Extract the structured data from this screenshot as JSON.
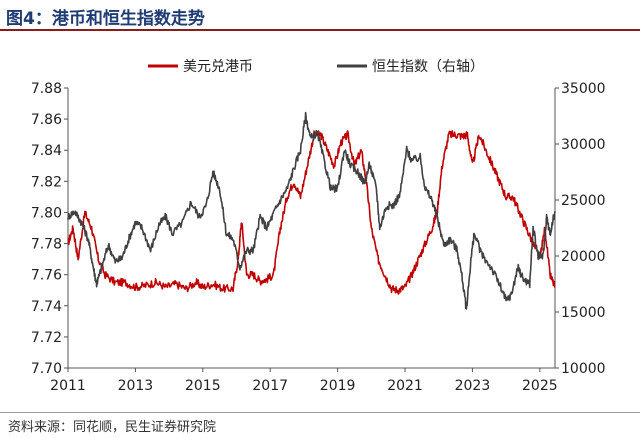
{
  "title": "图4：港币和恒生指数走势",
  "source": "资料来源：同花顺，民生证券研究院",
  "chart_data": {
    "type": "line",
    "legend_position": "top-center",
    "grid": false,
    "x_ticks": [
      "2011",
      "2013",
      "2015",
      "2017",
      "2019",
      "2021",
      "2023",
      "2025"
    ],
    "x_range": [
      2011.0,
      2025.45
    ],
    "y_left": {
      "range": [
        7.7,
        7.88
      ],
      "ticks": [
        "7.70",
        "7.72",
        "7.74",
        "7.76",
        "7.78",
        "7.80",
        "7.82",
        "7.84",
        "7.86",
        "7.88"
      ]
    },
    "y_right": {
      "range": [
        10000,
        35000
      ],
      "ticks": [
        "10000",
        "15000",
        "20000",
        "25000",
        "30000",
        "35000"
      ]
    },
    "series": [
      {
        "name": "美元兑港币",
        "axis": "left",
        "color": "#c00000",
        "points": [
          [
            2011.0,
            7.78
          ],
          [
            2011.15,
            7.79
          ],
          [
            2011.3,
            7.77
          ],
          [
            2011.5,
            7.8
          ],
          [
            2011.7,
            7.79
          ],
          [
            2011.9,
            7.77
          ],
          [
            2012.1,
            7.76
          ],
          [
            2012.4,
            7.755
          ],
          [
            2012.7,
            7.755
          ],
          [
            2013.0,
            7.752
          ],
          [
            2013.3,
            7.753
          ],
          [
            2013.6,
            7.755
          ],
          [
            2013.9,
            7.752
          ],
          [
            2014.2,
            7.754
          ],
          [
            2014.5,
            7.751
          ],
          [
            2014.8,
            7.755
          ],
          [
            2015.0,
            7.752
          ],
          [
            2015.3,
            7.754
          ],
          [
            2015.6,
            7.751
          ],
          [
            2015.9,
            7.751
          ],
          [
            2016.05,
            7.77
          ],
          [
            2016.15,
            7.795
          ],
          [
            2016.3,
            7.76
          ],
          [
            2016.5,
            7.76
          ],
          [
            2016.7,
            7.756
          ],
          [
            2016.9,
            7.757
          ],
          [
            2017.1,
            7.76
          ],
          [
            2017.3,
            7.79
          ],
          [
            2017.5,
            7.81
          ],
          [
            2017.7,
            7.82
          ],
          [
            2017.9,
            7.81
          ],
          [
            2018.1,
            7.83
          ],
          [
            2018.3,
            7.85
          ],
          [
            2018.5,
            7.85
          ],
          [
            2018.7,
            7.84
          ],
          [
            2018.9,
            7.83
          ],
          [
            2019.1,
            7.845
          ],
          [
            2019.3,
            7.85
          ],
          [
            2019.5,
            7.83
          ],
          [
            2019.7,
            7.84
          ],
          [
            2019.85,
            7.82
          ],
          [
            2020.0,
            7.79
          ],
          [
            2020.2,
            7.77
          ],
          [
            2020.4,
            7.76
          ],
          [
            2020.6,
            7.751
          ],
          [
            2020.8,
            7.75
          ],
          [
            2021.0,
            7.752
          ],
          [
            2021.2,
            7.76
          ],
          [
            2021.4,
            7.77
          ],
          [
            2021.6,
            7.78
          ],
          [
            2021.8,
            7.79
          ],
          [
            2021.95,
            7.8
          ],
          [
            2022.1,
            7.83
          ],
          [
            2022.3,
            7.85
          ],
          [
            2022.5,
            7.85
          ],
          [
            2022.7,
            7.849
          ],
          [
            2022.85,
            7.85
          ],
          [
            2023.0,
            7.83
          ],
          [
            2023.2,
            7.85
          ],
          [
            2023.4,
            7.84
          ],
          [
            2023.6,
            7.83
          ],
          [
            2023.8,
            7.82
          ],
          [
            2024.0,
            7.81
          ],
          [
            2024.2,
            7.81
          ],
          [
            2024.4,
            7.8
          ],
          [
            2024.6,
            7.79
          ],
          [
            2024.8,
            7.78
          ],
          [
            2025.0,
            7.77
          ],
          [
            2025.15,
            7.79
          ],
          [
            2025.3,
            7.76
          ],
          [
            2025.45,
            7.752
          ]
        ]
      },
      {
        "name": "恒生指数（右轴）",
        "axis": "right",
        "color": "#404040",
        "points": [
          [
            2011.0,
            23500
          ],
          [
            2011.2,
            24000
          ],
          [
            2011.4,
            23000
          ],
          [
            2011.6,
            21500
          ],
          [
            2011.75,
            19000
          ],
          [
            2011.85,
            17500
          ],
          [
            2012.0,
            19000
          ],
          [
            2012.2,
            21000
          ],
          [
            2012.4,
            19500
          ],
          [
            2012.6,
            19800
          ],
          [
            2012.8,
            21500
          ],
          [
            2013.0,
            23000
          ],
          [
            2013.2,
            22500
          ],
          [
            2013.45,
            20500
          ],
          [
            2013.7,
            22800
          ],
          [
            2013.9,
            23500
          ],
          [
            2014.1,
            22000
          ],
          [
            2014.4,
            23000
          ],
          [
            2014.65,
            24800
          ],
          [
            2014.9,
            23500
          ],
          [
            2015.1,
            24500
          ],
          [
            2015.3,
            27500
          ],
          [
            2015.5,
            26000
          ],
          [
            2015.7,
            22000
          ],
          [
            2015.9,
            21500
          ],
          [
            2016.1,
            19000
          ],
          [
            2016.3,
            20500
          ],
          [
            2016.5,
            20500
          ],
          [
            2016.7,
            23500
          ],
          [
            2016.9,
            22500
          ],
          [
            2017.1,
            23800
          ],
          [
            2017.3,
            25000
          ],
          [
            2017.5,
            26000
          ],
          [
            2017.7,
            27800
          ],
          [
            2017.9,
            29500
          ],
          [
            2018.05,
            32500
          ],
          [
            2018.2,
            30500
          ],
          [
            2018.4,
            31000
          ],
          [
            2018.6,
            28500
          ],
          [
            2018.8,
            26000
          ],
          [
            2019.0,
            26000
          ],
          [
            2019.2,
            29500
          ],
          [
            2019.4,
            28000
          ],
          [
            2019.6,
            27500
          ],
          [
            2019.8,
            26500
          ],
          [
            2019.95,
            28200
          ],
          [
            2020.15,
            26000
          ],
          [
            2020.25,
            22500
          ],
          [
            2020.45,
            24500
          ],
          [
            2020.65,
            24500
          ],
          [
            2020.85,
            25500
          ],
          [
            2021.05,
            29500
          ],
          [
            2021.2,
            28500
          ],
          [
            2021.45,
            28800
          ],
          [
            2021.6,
            26000
          ],
          [
            2021.8,
            25000
          ],
          [
            2021.95,
            23500
          ],
          [
            2022.15,
            21000
          ],
          [
            2022.35,
            21500
          ],
          [
            2022.55,
            20500
          ],
          [
            2022.7,
            18000
          ],
          [
            2022.82,
            15200
          ],
          [
            2022.95,
            19500
          ],
          [
            2023.05,
            22000
          ],
          [
            2023.3,
            20000
          ],
          [
            2023.55,
            19000
          ],
          [
            2023.8,
            17500
          ],
          [
            2024.0,
            16000
          ],
          [
            2024.15,
            16500
          ],
          [
            2024.35,
            19000
          ],
          [
            2024.5,
            18000
          ],
          [
            2024.7,
            17500
          ],
          [
            2024.8,
            22500
          ],
          [
            2024.95,
            20000
          ],
          [
            2025.1,
            20000
          ],
          [
            2025.2,
            23500
          ],
          [
            2025.3,
            22000
          ],
          [
            2025.45,
            24000
          ]
        ]
      }
    ]
  }
}
